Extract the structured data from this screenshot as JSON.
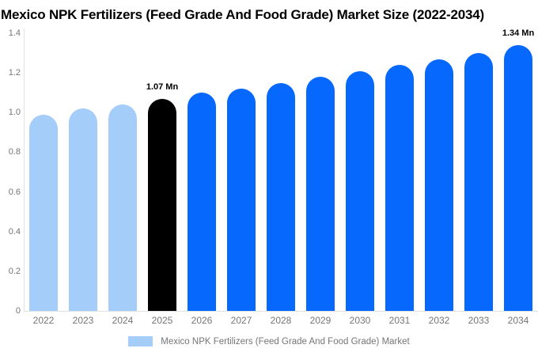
{
  "chart_data": {
    "type": "bar",
    "title": "Mexico NPK Fertilizers (Feed Grade And Food Grade) Market Size (2022-2034)",
    "unit": "Mn",
    "categories": [
      "2022",
      "2023",
      "2024",
      "2025",
      "2026",
      "2027",
      "2028",
      "2029",
      "2030",
      "2031",
      "2032",
      "2033",
      "2034"
    ],
    "values": [
      0.99,
      1.02,
      1.04,
      1.07,
      1.1,
      1.12,
      1.15,
      1.18,
      1.21,
      1.24,
      1.27,
      1.3,
      1.34
    ],
    "bar_colors": [
      "#a4cdfa",
      "#a4cdfa",
      "#a4cdfa",
      "#000000",
      "#0668fc",
      "#0668fc",
      "#0668fc",
      "#0668fc",
      "#0668fc",
      "#0668fc",
      "#0668fc",
      "#0668fc",
      "#0668fc"
    ],
    "annotations": [
      {
        "index": 3,
        "text": "1.07 Mn"
      },
      {
        "index": 12,
        "text": "1.34 Mn"
      }
    ],
    "y_ticks": [
      0,
      0.2,
      0.4,
      0.6,
      0.8,
      1.0,
      1.2,
      1.4
    ],
    "y_tick_labels": [
      "0",
      "0.2",
      "0.4",
      "0.6",
      "0.8",
      "1.0",
      "1.2",
      "1.4"
    ],
    "ylim": [
      0,
      1.4
    ],
    "xlabel": "",
    "ylabel": "",
    "grid": false,
    "colors": {
      "historical": "#a4cdfa",
      "base_year": "#000000",
      "forecast": "#0668fc",
      "axis": "#e2e2e2",
      "tick_text": "#757575"
    },
    "legend": {
      "position": "bottom",
      "swatch_color": "#a4cdfa",
      "label": "Mexico NPK Fertilizers (Feed Grade And Food Grade) Market"
    }
  }
}
